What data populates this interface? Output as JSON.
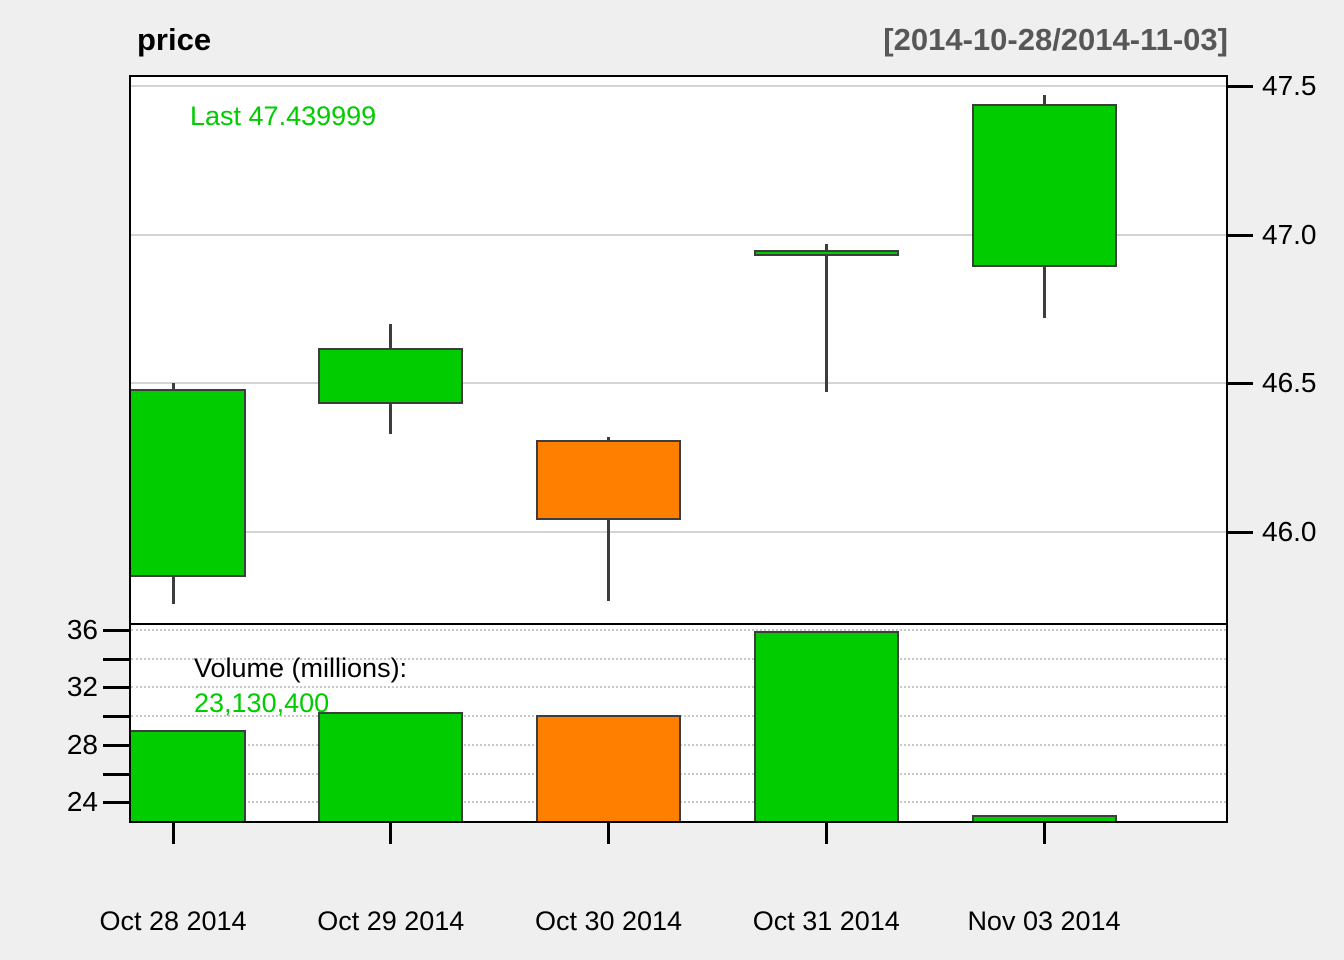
{
  "chart_data": {
    "type": "candlestick",
    "title": "price",
    "date_range_label": "[2014-10-28/2014-11-03]",
    "last_label": "Last 47.439999",
    "volume_title": "Volume (millions):",
    "volume_value": "23,130,400",
    "categories": [
      "Oct 28 2014",
      "Oct 29 2014",
      "Oct 30 2014",
      "Oct 31 2014",
      "Nov 03 2014"
    ],
    "ohlc": [
      {
        "date": "Oct 28 2014",
        "open": 45.85,
        "high": 46.5,
        "low": 45.76,
        "close": 46.48,
        "volume_millions": 29.0,
        "direction": "up"
      },
      {
        "date": "Oct 29 2014",
        "open": 46.43,
        "high": 46.7,
        "low": 46.33,
        "close": 46.62,
        "volume_millions": 30.3,
        "direction": "up"
      },
      {
        "date": "Oct 30 2014",
        "open": 46.31,
        "high": 46.32,
        "low": 45.77,
        "close": 46.04,
        "volume_millions": 30.1,
        "direction": "down"
      },
      {
        "date": "Oct 31 2014",
        "open": 46.93,
        "high": 46.97,
        "low": 46.47,
        "close": 46.95,
        "volume_millions": 35.9,
        "direction": "up"
      },
      {
        "date": "Nov 03 2014",
        "open": 46.89,
        "high": 47.47,
        "low": 46.72,
        "close": 47.44,
        "volume_millions": 23.13,
        "direction": "up"
      }
    ],
    "price_axis": {
      "side": "right",
      "ticks": [
        47.5,
        47.0,
        46.5,
        46.0
      ],
      "tick_labels": [
        "47.5",
        "47.0",
        "46.5",
        "46.0"
      ],
      "ylim": [
        45.695,
        47.53
      ],
      "grid": "solid"
    },
    "volume_axis": {
      "side": "left",
      "unit": "millions",
      "ticks": [
        36,
        34,
        32,
        30,
        28,
        26,
        24
      ],
      "tick_labels": [
        "36",
        "",
        "32",
        "",
        "28",
        "",
        "24"
      ],
      "ylim": [
        22.69,
        36.35
      ],
      "grid": "dotted"
    },
    "colors": {
      "up": "#00CC00",
      "down": "#FF7F00",
      "candle_border": "#3D3D3D",
      "grid_price": "#D4D4D4",
      "grid_volume": "#C8C8C8",
      "axis": "#000000",
      "range_text": "#575757",
      "annotation_green": "#00CC00",
      "panel_bg": "#FFFFFF",
      "page_bg": "#EFEFEF"
    }
  }
}
